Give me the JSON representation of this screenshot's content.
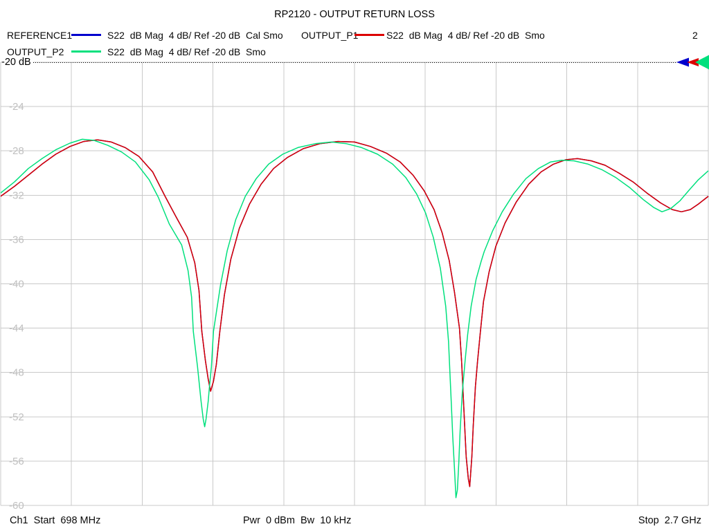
{
  "window": {
    "title": "RP2120 - OUTPUT RETURN LOSS",
    "channel_indicator": "2"
  },
  "legend": {
    "rows": [
      {
        "entries": [
          {
            "name": "REFERENCE1",
            "desc": "S22  dB Mag  4 dB/ Ref -20 dB  Cal Smo",
            "color": "#0000cd"
          },
          {
            "name": "OUTPUT_P1",
            "desc": "S22  dB Mag  4 dB/ Ref -20 dB  Smo",
            "color": "#dc0000"
          }
        ]
      },
      {
        "entries": [
          {
            "name": "OUTPUT_P2",
            "desc": "S22  dB Mag  4 dB/ Ref -20 dB  Smo",
            "color": "#00e07d"
          }
        ]
      }
    ]
  },
  "ref_line": {
    "label": "-20 dB",
    "value_dB": -20
  },
  "footer": {
    "left": "Ch1  Start  698 MHz",
    "center": "Pwr  0 dBm  Bw  10 kHz",
    "right": "Stop  2.7 GHz"
  },
  "chart_data": {
    "type": "line",
    "title": "RP2120 - OUTPUT RETURN LOSS",
    "xlabel": "Frequency (698 MHz to 2.7 GHz, no tick labels shown)",
    "ylabel": "S22 magnitude (dB), 4 dB/div, Ref -20 dB",
    "x_axis": {
      "start_MHz": 698,
      "stop_MHz": 2700,
      "divisions": 10
    },
    "y_axis": {
      "top_dB": -20,
      "bottom_dB": -60,
      "tick_step": 4,
      "ticks": [
        "-24",
        "-28",
        "-32",
        "-36",
        "-40",
        "-44",
        "-48",
        "-52",
        "-56",
        "-60"
      ]
    },
    "grid": true,
    "legend_position": "top",
    "reference_line_dB": -20,
    "style": {
      "grid_color": "#c8c8c8",
      "tick_label_color": "#c0c0c0",
      "ref_line_color": "#000000"
    },
    "ref_markers": [
      {
        "trace": "REFERENCE1",
        "color": "#0000cd"
      },
      {
        "trace": "OUTPUT_P1",
        "color": "#dc0000"
      },
      {
        "trace": "OUTPUT_P2",
        "color": "#00e07d"
      }
    ],
    "series": [
      {
        "name": "REFERENCE1",
        "color": "#0000cd",
        "visible_in_plot": false,
        "hidden_under": "OUTPUT_P1",
        "note": "blue calibration reference trace coincides with OUTPUT_P1 and is hidden beneath it"
      },
      {
        "name": "OUTPUT_P1",
        "color": "#dc0000",
        "points_MHz_dB": [
          [
            698,
            -32.1
          ],
          [
            737,
            -31.2
          ],
          [
            776,
            -30.2
          ],
          [
            815,
            -29.2
          ],
          [
            854,
            -28.3
          ],
          [
            894,
            -27.6
          ],
          [
            933,
            -27.15
          ],
          [
            972,
            -27.0
          ],
          [
            1011,
            -27.2
          ],
          [
            1050,
            -27.7
          ],
          [
            1089,
            -28.5
          ],
          [
            1128,
            -29.9
          ],
          [
            1163,
            -32.1
          ],
          [
            1195,
            -34.0
          ],
          [
            1226,
            -35.8
          ],
          [
            1247,
            -38.1
          ],
          [
            1259,
            -40.6
          ],
          [
            1267,
            -44.3
          ],
          [
            1277,
            -46.9
          ],
          [
            1285,
            -48.6
          ],
          [
            1292,
            -49.7
          ],
          [
            1300,
            -48.8
          ],
          [
            1308,
            -47.3
          ],
          [
            1318,
            -44.3
          ],
          [
            1331,
            -41.0
          ],
          [
            1349,
            -37.8
          ],
          [
            1373,
            -35.0
          ],
          [
            1402,
            -32.8
          ],
          [
            1435,
            -31.0
          ],
          [
            1470,
            -29.6
          ],
          [
            1509,
            -28.6
          ],
          [
            1554,
            -27.8
          ],
          [
            1601,
            -27.35
          ],
          [
            1652,
            -27.15
          ],
          [
            1699,
            -27.2
          ],
          [
            1744,
            -27.6
          ],
          [
            1789,
            -28.2
          ],
          [
            1828,
            -29.0
          ],
          [
            1865,
            -30.2
          ],
          [
            1896,
            -31.6
          ],
          [
            1924,
            -33.3
          ],
          [
            1947,
            -35.4
          ],
          [
            1967,
            -37.9
          ],
          [
            1982,
            -40.8
          ],
          [
            1996,
            -44.0
          ],
          [
            2002,
            -47.0
          ],
          [
            2010,
            -52.4
          ],
          [
            2015,
            -55.6
          ],
          [
            2021,
            -57.6
          ],
          [
            2025,
            -58.3
          ],
          [
            2031,
            -55.6
          ],
          [
            2035,
            -52.8
          ],
          [
            2041,
            -49.3
          ],
          [
            2047,
            -47.0
          ],
          [
            2055,
            -44.4
          ],
          [
            2064,
            -41.6
          ],
          [
            2080,
            -38.9
          ],
          [
            2099,
            -36.6
          ],
          [
            2125,
            -34.5
          ],
          [
            2157,
            -32.6
          ],
          [
            2192,
            -31.0
          ],
          [
            2227,
            -29.9
          ],
          [
            2262,
            -29.2
          ],
          [
            2297,
            -28.8
          ],
          [
            2330,
            -28.7
          ],
          [
            2369,
            -28.9
          ],
          [
            2408,
            -29.3
          ],
          [
            2447,
            -30.0
          ],
          [
            2487,
            -30.8
          ],
          [
            2526,
            -31.8
          ],
          [
            2565,
            -32.7
          ],
          [
            2598,
            -33.3
          ],
          [
            2624,
            -33.5
          ],
          [
            2649,
            -33.3
          ],
          [
            2672,
            -32.8
          ],
          [
            2700,
            -32.1
          ]
        ]
      },
      {
        "name": "OUTPUT_P2",
        "color": "#00e07d",
        "points_MHz_dB": [
          [
            698,
            -31.8
          ],
          [
            737,
            -30.8
          ],
          [
            776,
            -29.6
          ],
          [
            815,
            -28.7
          ],
          [
            854,
            -27.9
          ],
          [
            894,
            -27.3
          ],
          [
            929,
            -26.95
          ],
          [
            962,
            -27.05
          ],
          [
            1001,
            -27.5
          ],
          [
            1040,
            -28.1
          ],
          [
            1079,
            -29.0
          ],
          [
            1118,
            -30.6
          ],
          [
            1144,
            -32.2
          ],
          [
            1175,
            -34.6
          ],
          [
            1210,
            -36.5
          ],
          [
            1228,
            -38.8
          ],
          [
            1238,
            -41.2
          ],
          [
            1243,
            -44.3
          ],
          [
            1255,
            -47.5
          ],
          [
            1265,
            -50.6
          ],
          [
            1271,
            -52.2
          ],
          [
            1275,
            -52.9
          ],
          [
            1279,
            -52.2
          ],
          [
            1285,
            -50.6
          ],
          [
            1288,
            -49.5
          ],
          [
            1294,
            -47.5
          ],
          [
            1300,
            -44.3
          ],
          [
            1320,
            -40.1
          ],
          [
            1339,
            -37.0
          ],
          [
            1363,
            -34.2
          ],
          [
            1390,
            -32.1
          ],
          [
            1421,
            -30.5
          ],
          [
            1456,
            -29.2
          ],
          [
            1496,
            -28.3
          ],
          [
            1539,
            -27.7
          ],
          [
            1588,
            -27.35
          ],
          [
            1633,
            -27.2
          ],
          [
            1676,
            -27.35
          ],
          [
            1719,
            -27.7
          ],
          [
            1764,
            -28.3
          ],
          [
            1807,
            -29.2
          ],
          [
            1844,
            -30.4
          ],
          [
            1875,
            -31.9
          ],
          [
            1900,
            -33.6
          ],
          [
            1922,
            -35.8
          ],
          [
            1942,
            -38.6
          ],
          [
            1957,
            -42.0
          ],
          [
            1965,
            -45.2
          ],
          [
            1969,
            -48.0
          ],
          [
            1973,
            -50.9
          ],
          [
            1977,
            -53.8
          ],
          [
            1982,
            -56.8
          ],
          [
            1986,
            -59.3
          ],
          [
            1990,
            -58.6
          ],
          [
            1994,
            -56.2
          ],
          [
            1998,
            -53.2
          ],
          [
            2004,
            -49.8
          ],
          [
            2012,
            -46.9
          ],
          [
            2019,
            -44.6
          ],
          [
            2029,
            -42.0
          ],
          [
            2043,
            -39.6
          ],
          [
            2057,
            -38.0
          ],
          [
            2066,
            -37.1
          ],
          [
            2090,
            -35.2
          ],
          [
            2117,
            -33.5
          ],
          [
            2149,
            -31.9
          ],
          [
            2184,
            -30.5
          ],
          [
            2219,
            -29.6
          ],
          [
            2254,
            -29.0
          ],
          [
            2285,
            -28.85
          ],
          [
            2320,
            -28.9
          ],
          [
            2360,
            -29.2
          ],
          [
            2399,
            -29.7
          ],
          [
            2438,
            -30.4
          ],
          [
            2477,
            -31.3
          ],
          [
            2516,
            -32.4
          ],
          [
            2545,
            -33.1
          ],
          [
            2569,
            -33.5
          ],
          [
            2594,
            -33.2
          ],
          [
            2620,
            -32.5
          ],
          [
            2647,
            -31.5
          ],
          [
            2672,
            -30.6
          ],
          [
            2700,
            -29.8
          ]
        ]
      }
    ]
  }
}
